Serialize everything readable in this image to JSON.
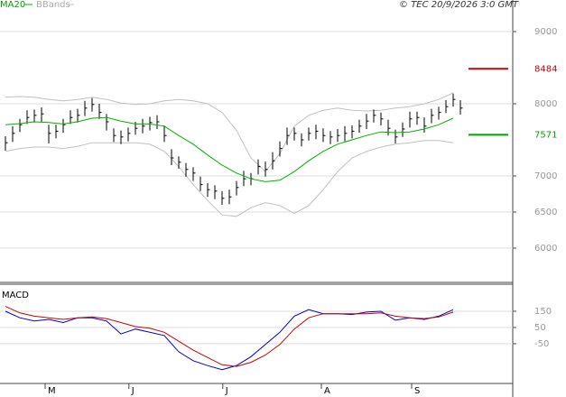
{
  "chart_data": [
    {
      "type": "ohlc",
      "credit": "© TEC 20/9/2026 3:0 GMT",
      "color": "#000000",
      "xlim": [
        -0.75,
        70.25
      ],
      "ylim": [
        5537.5,
        9312.5
      ],
      "yticks": [
        6000,
        6500,
        7000,
        8000,
        9000
      ],
      "grid": true,
      "x": [
        0,
        1,
        2,
        3,
        4,
        5,
        6,
        7,
        8,
        9,
        10,
        11,
        12,
        13,
        14,
        15,
        16,
        17,
        18,
        19,
        20,
        21,
        22,
        23,
        24,
        25,
        26,
        27,
        28,
        29,
        30,
        31,
        32,
        33,
        34,
        35,
        36,
        37,
        38,
        39,
        40,
        41,
        42,
        43,
        44,
        45,
        46,
        47,
        48,
        49,
        50,
        51,
        52,
        53,
        54,
        55,
        56,
        57,
        58,
        59,
        60,
        61,
        62,
        63
      ],
      "high": [
        7550,
        7690,
        7790,
        7910,
        7920,
        7950,
        7710,
        7710,
        7790,
        7910,
        7930,
        8040,
        8080,
        8000,
        7860,
        7660,
        7630,
        7670,
        7750,
        7790,
        7820,
        7840,
        7700,
        7370,
        7270,
        7180,
        7120,
        6990,
        6900,
        6870,
        6790,
        6810,
        6930,
        7070,
        7040,
        7230,
        7200,
        7330,
        7480,
        7670,
        7670,
        7590,
        7670,
        7710,
        7660,
        7620,
        7650,
        7690,
        7700,
        7780,
        7860,
        7920,
        7880,
        7780,
        7640,
        7740,
        7890,
        7890,
        7810,
        7930,
        7960,
        8050,
        8140,
        8050
      ],
      "low": [
        7350,
        7470,
        7610,
        7720,
        7740,
        7750,
        7450,
        7520,
        7600,
        7720,
        7740,
        7830,
        7890,
        7790,
        7630,
        7470,
        7440,
        7480,
        7570,
        7590,
        7630,
        7650,
        7470,
        7150,
        7100,
        6990,
        6930,
        6790,
        6710,
        6680,
        6600,
        6610,
        6730,
        6860,
        6870,
        7020,
        6990,
        7090,
        7270,
        7430,
        7490,
        7410,
        7490,
        7510,
        7470,
        7440,
        7470,
        7480,
        7520,
        7600,
        7650,
        7740,
        7700,
        7560,
        7450,
        7540,
        7670,
        7710,
        7600,
        7730,
        7780,
        7870,
        7960,
        7850
      ],
      "close": [
        7460,
        7590,
        7710,
        7810,
        7840,
        7860,
        7590,
        7620,
        7710,
        7810,
        7840,
        7940,
        7990,
        7880,
        7750,
        7560,
        7540,
        7590,
        7660,
        7690,
        7740,
        7750,
        7560,
        7250,
        7190,
        7090,
        7040,
        6880,
        6810,
        6790,
        6690,
        6710,
        6840,
        6960,
        6960,
        7130,
        7090,
        7210,
        7380,
        7560,
        7590,
        7500,
        7590,
        7620,
        7560,
        7540,
        7560,
        7590,
        7620,
        7690,
        7760,
        7840,
        7790,
        7660,
        7540,
        7650,
        7790,
        7810,
        7690,
        7840,
        7880,
        7960,
        8060,
        7940
      ],
      "line_x": [
        0,
        2,
        4,
        6,
        8,
        10,
        12,
        14,
        16,
        18,
        20,
        22,
        24,
        26,
        28,
        30,
        32,
        34,
        36,
        38,
        40,
        42,
        44,
        46,
        48,
        50,
        52,
        54,
        56,
        58,
        60,
        62
      ],
      "ma": {
        "name": "MA20",
        "color": "#00b000",
        "values": [
          7710,
          7725,
          7750,
          7740,
          7720,
          7750,
          7800,
          7810,
          7760,
          7720,
          7720,
          7690,
          7560,
          7440,
          7290,
          7150,
          7040,
          6960,
          6920,
          6940,
          7060,
          7210,
          7340,
          7440,
          7500,
          7560,
          7610,
          7600,
          7610,
          7650,
          7710,
          7800
        ]
      },
      "bbands": {
        "name": "BBands",
        "color": "#c0c0c0",
        "upper": [
          8090,
          8100,
          8090,
          8060,
          8040,
          8060,
          8090,
          8060,
          8010,
          7990,
          8000,
          8040,
          8060,
          8040,
          8000,
          7880,
          7630,
          7250,
          7060,
          7310,
          7690,
          7840,
          7910,
          7940,
          7910,
          7900,
          7910,
          7940,
          7960,
          8000,
          8060,
          8150
        ],
        "lower": [
          7340,
          7380,
          7400,
          7400,
          7380,
          7410,
          7460,
          7460,
          7460,
          7460,
          7440,
          7340,
          7130,
          6880,
          6660,
          6460,
          6440,
          6560,
          6630,
          6590,
          6480,
          6590,
          6810,
          7060,
          7250,
          7340,
          7400,
          7440,
          7460,
          7490,
          7490,
          7460
        ]
      },
      "levels": [
        {
          "value": 8484,
          "color": "#cc0000"
        },
        {
          "value": 7571,
          "color": "#00a000"
        }
      ]
    },
    {
      "type": "line",
      "title": "MACD",
      "xlim": [
        -0.75,
        70.25
      ],
      "ylim": [
        -295,
        311
      ],
      "yticks": [
        150,
        50,
        -50
      ],
      "grid": true,
      "xticks": [
        {
          "value": 5.5,
          "label": "M"
        },
        {
          "value": 17.1,
          "label": "J"
        },
        {
          "value": 30.1,
          "label": "J"
        },
        {
          "value": 43.75,
          "label": "A"
        },
        {
          "value": 56.25,
          "label": "S"
        }
      ],
      "x": [
        0,
        2,
        4,
        6,
        8,
        10,
        12,
        14,
        16,
        18,
        20,
        22,
        24,
        26,
        28,
        30,
        32,
        34,
        36,
        38,
        40,
        42,
        44,
        46,
        48,
        50,
        52,
        54,
        56,
        58,
        60,
        62
      ],
      "series": [
        {
          "color": "#0000cc",
          "values": [
            150,
            110,
            90,
            100,
            80,
            110,
            110,
            90,
            10,
            40,
            20,
            0,
            -100,
            -155,
            -185,
            -210,
            -185,
            -130,
            -55,
            20,
            120,
            160,
            135,
            135,
            130,
            145,
            150,
            95,
            110,
            100,
            120,
            160
          ]
        },
        {
          "color": "#cc0000",
          "values": [
            180,
            140,
            120,
            110,
            100,
            110,
            115,
            105,
            80,
            55,
            45,
            20,
            -35,
            -90,
            -135,
            -180,
            -190,
            -165,
            -120,
            -55,
            40,
            110,
            135,
            135,
            135,
            135,
            140,
            120,
            110,
            105,
            115,
            145
          ]
        }
      ]
    }
  ]
}
